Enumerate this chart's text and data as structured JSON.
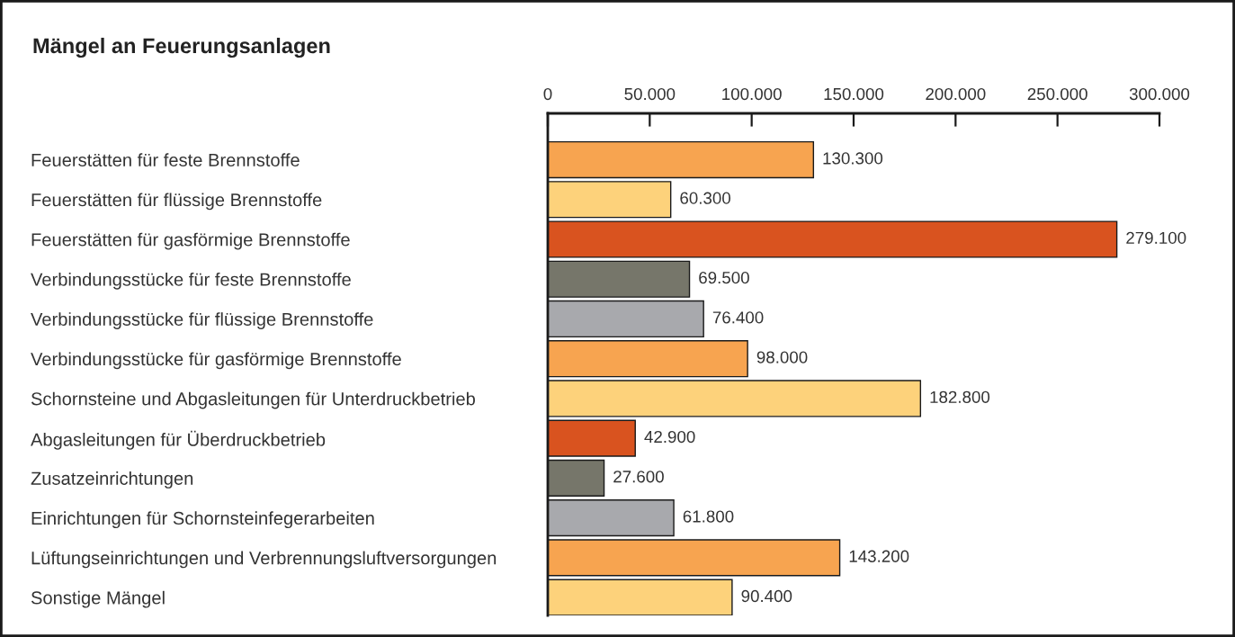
{
  "chart_data": {
    "type": "bar",
    "orientation": "horizontal",
    "title": "Mängel an Feuerungsanlagen",
    "categories": [
      "Feuerstätten für feste Brennstoffe",
      "Feuerstätten für flüssige Brennstoffe",
      "Feuerstätten für gasförmige Brennstoffe",
      "Verbindungsstücke für feste Brennstoffe",
      "Verbindungsstücke für flüssige Brennstoffe",
      "Verbindungsstücke für gasförmige Brennstoffe",
      "Schornsteine und Abgasleitungen für Unterdruckbetrieb",
      "Abgasleitungen für Überdruckbetrieb",
      "Zusatzeinrichtungen",
      "Einrichtungen für Schornsteinfegerarbeiten",
      "Lüftungseinrichtungen und Verbrennungsluftversorgungen",
      "Sonstige Mängel"
    ],
    "values": [
      130300,
      60300,
      279100,
      69500,
      76400,
      98000,
      182800,
      42900,
      27600,
      61800,
      143200,
      90400
    ],
    "colors": [
      "#f7a450",
      "#fdd27b",
      "#d9531f",
      "#76766a",
      "#a8a9ad",
      "#f7a450",
      "#fdd27b",
      "#d9531f",
      "#76766a",
      "#a8a9ad",
      "#f7a450",
      "#fdd27b"
    ],
    "value_labels": [
      "130.300",
      "60.300",
      "279.100",
      "69.500",
      "76.400",
      "98.000",
      "182.800",
      "42.900",
      "27.600",
      "61.800",
      "143.200",
      "90.400"
    ],
    "xlim": [
      0,
      300000
    ],
    "xticks": [
      0,
      {
        "value": 50000,
        "label": "50.000"
      },
      {
        "value": 100000,
        "label": "100.000"
      },
      {
        "value": 150000,
        "label": "150.000"
      },
      {
        "value": 200000,
        "label": "200.000"
      },
      {
        "value": 250000,
        "label": "250.000"
      },
      {
        "value": 300000,
        "label": "300.000"
      }
    ]
  }
}
